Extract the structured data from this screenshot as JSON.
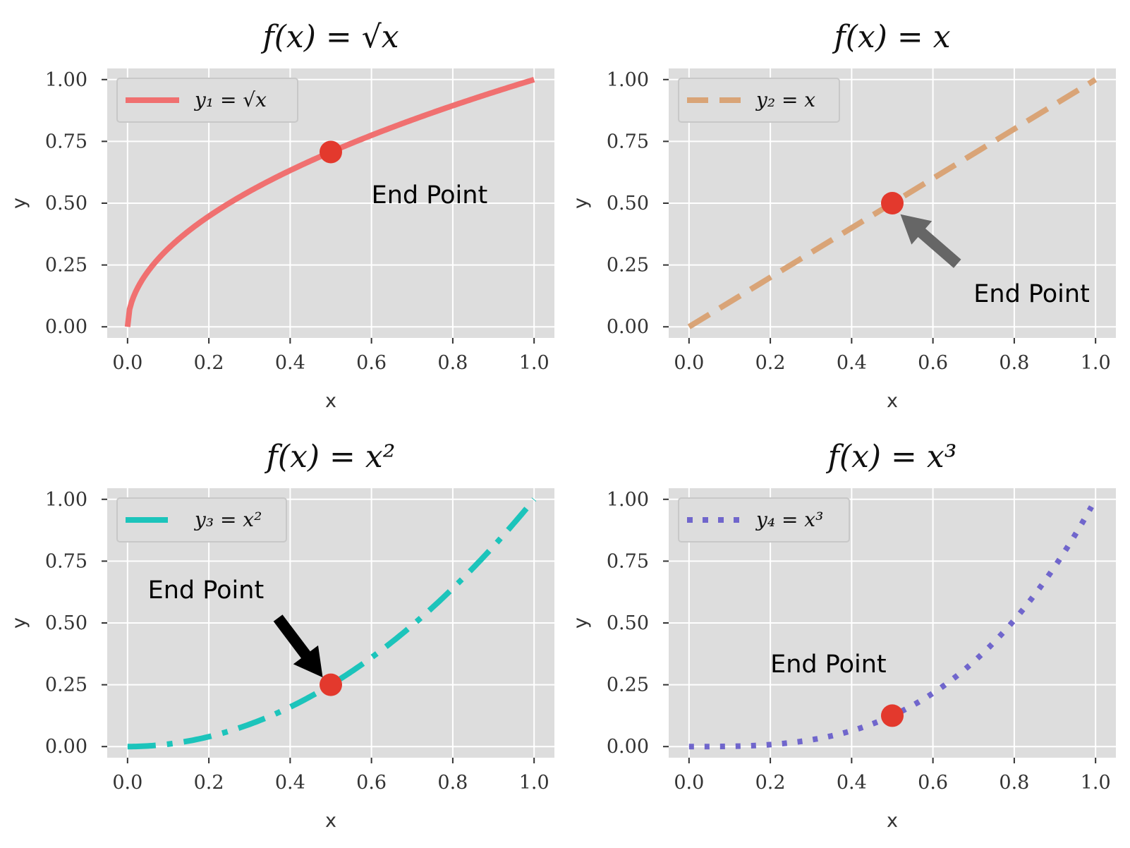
{
  "colors": {
    "background": "#ffffff",
    "plot_bg": "#dddddd",
    "grid": "#ffffff",
    "marker": "#e3392d",
    "tick_text": "#333333"
  },
  "chart_data": [
    {
      "type": "line",
      "title": "f(x) = √x",
      "xlabel": "x",
      "ylabel": "y",
      "xlim": [
        -0.05,
        1.05
      ],
      "ylim": [
        -0.045,
        1.045
      ],
      "xticks": [
        "0.0",
        "0.2",
        "0.4",
        "0.6",
        "0.8",
        "1.0"
      ],
      "yticks": [
        "0.00",
        "0.25",
        "0.50",
        "0.75",
        "1.00"
      ],
      "grid": true,
      "legend_position": "top-left",
      "series": [
        {
          "name": "y₁ = √x",
          "function": "sqrt",
          "color": "#f07070",
          "line_style": "solid",
          "x": [
            0.0,
            0.01,
            0.02,
            0.04,
            0.06,
            0.1,
            0.15,
            0.2,
            0.3,
            0.4,
            0.5,
            0.6,
            0.7,
            0.8,
            0.9,
            1.0
          ],
          "y": [
            0.0,
            0.1,
            0.141,
            0.2,
            0.245,
            0.316,
            0.387,
            0.447,
            0.548,
            0.632,
            0.707,
            0.775,
            0.837,
            0.894,
            0.949,
            1.0
          ]
        }
      ],
      "marker": {
        "x": 0.5,
        "y": 0.707
      },
      "annotation": {
        "text": "End Point",
        "text_x": 0.6,
        "text_y": 0.5,
        "arrow": null
      }
    },
    {
      "type": "line",
      "title": "f(x) = x",
      "xlabel": "x",
      "ylabel": "y",
      "xlim": [
        -0.05,
        1.05
      ],
      "ylim": [
        -0.045,
        1.045
      ],
      "xticks": [
        "0.0",
        "0.2",
        "0.4",
        "0.6",
        "0.8",
        "1.0"
      ],
      "yticks": [
        "0.00",
        "0.25",
        "0.50",
        "0.75",
        "1.00"
      ],
      "grid": true,
      "legend_position": "top-left",
      "series": [
        {
          "name": "y₂ = x",
          "function": "linear",
          "color": "#d9a477",
          "line_style": "dashed",
          "x": [
            0.0,
            0.2,
            0.4,
            0.6,
            0.8,
            1.0
          ],
          "y": [
            0.0,
            0.2,
            0.4,
            0.6,
            0.8,
            1.0
          ]
        }
      ],
      "marker": {
        "x": 0.5,
        "y": 0.5
      },
      "annotation": {
        "text": "End Point",
        "text_x": 0.7,
        "text_y": 0.1,
        "arrow": {
          "color": "#666666",
          "from_x": 0.66,
          "from_y": 0.255,
          "to_x": 0.52,
          "to_y": 0.455
        }
      }
    },
    {
      "type": "line",
      "title": "f(x) = x²",
      "xlabel": "x",
      "ylabel": "y",
      "xlim": [
        -0.05,
        1.05
      ],
      "ylim": [
        -0.045,
        1.045
      ],
      "xticks": [
        "0.0",
        "0.2",
        "0.4",
        "0.6",
        "0.8",
        "1.0"
      ],
      "yticks": [
        "0.00",
        "0.25",
        "0.50",
        "0.75",
        "1.00"
      ],
      "grid": true,
      "legend_position": "top-left",
      "series": [
        {
          "name": "y₃ = x²",
          "function": "square",
          "color": "#1cc4bb",
          "line_style": "dashdot",
          "x": [
            0.0,
            0.1,
            0.2,
            0.3,
            0.4,
            0.5,
            0.6,
            0.7,
            0.8,
            0.9,
            1.0
          ],
          "y": [
            0.0,
            0.01,
            0.04,
            0.09,
            0.16,
            0.25,
            0.36,
            0.49,
            0.64,
            0.81,
            1.0
          ]
        }
      ],
      "marker": {
        "x": 0.5,
        "y": 0.25
      },
      "annotation": {
        "text": "End Point",
        "text_x": 0.05,
        "text_y": 0.6,
        "arrow": {
          "color": "#000000",
          "from_x": 0.37,
          "from_y": 0.52,
          "to_x": 0.48,
          "to_y": 0.28
        }
      }
    },
    {
      "type": "line",
      "title": "f(x) = x³",
      "xlabel": "x",
      "ylabel": "y",
      "xlim": [
        -0.05,
        1.05
      ],
      "ylim": [
        -0.045,
        1.045
      ],
      "xticks": [
        "0.0",
        "0.2",
        "0.4",
        "0.6",
        "0.8",
        "1.0"
      ],
      "yticks": [
        "0.00",
        "0.25",
        "0.50",
        "0.75",
        "1.00"
      ],
      "grid": true,
      "legend_position": "top-left",
      "series": [
        {
          "name": "y₄ = x³",
          "function": "cube",
          "color": "#7066cc",
          "line_style": "dotted",
          "x": [
            0.0,
            0.1,
            0.2,
            0.3,
            0.4,
            0.5,
            0.6,
            0.7,
            0.8,
            0.9,
            0.99
          ],
          "y": [
            0.0,
            0.001,
            0.008,
            0.027,
            0.064,
            0.125,
            0.216,
            0.343,
            0.512,
            0.729,
            0.97
          ]
        }
      ],
      "marker": {
        "x": 0.5,
        "y": 0.125
      },
      "annotation": {
        "text": "End Point",
        "text_x": 0.2,
        "text_y": 0.3,
        "arrow": null
      }
    }
  ]
}
